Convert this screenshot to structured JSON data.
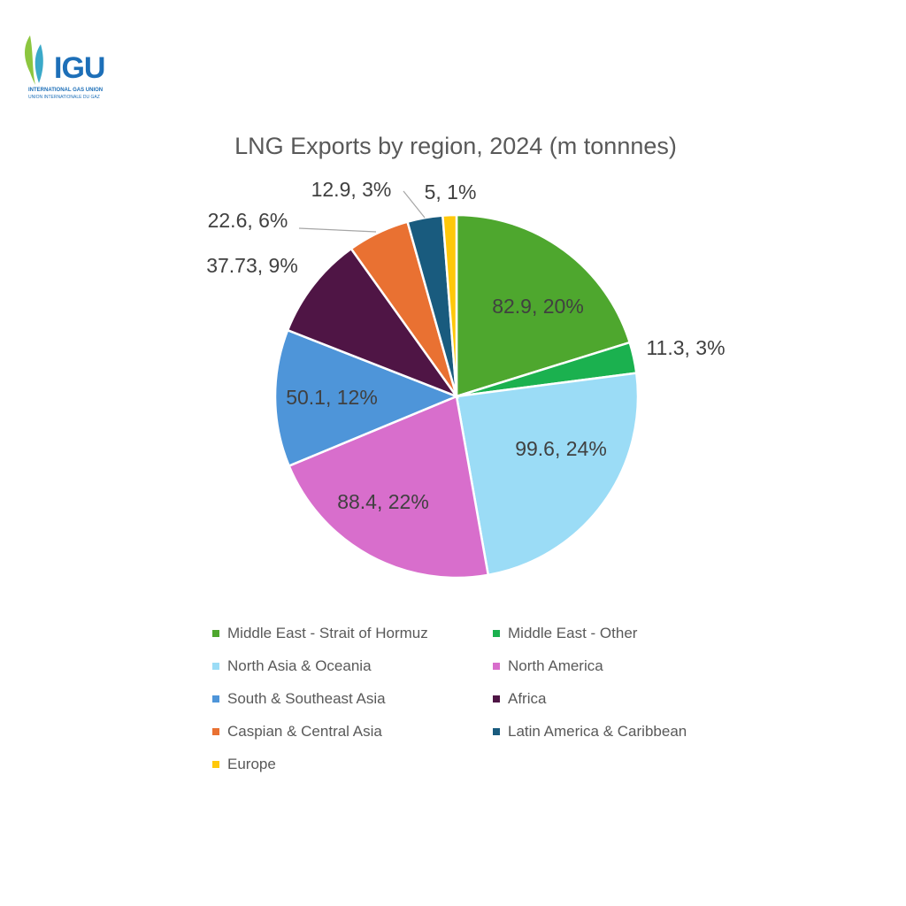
{
  "logo": {
    "name": "IGU",
    "line1": "INTERNATIONAL GAS UNION",
    "line2": "UNION INTERNATIONALE DU GAZ"
  },
  "chart_data": {
    "type": "pie",
    "title": "LNG Exports by region, 2024 (m tonnnes)",
    "start_angle": "top, clockwise",
    "legend_position": "bottom",
    "categories": [
      "Middle East - Strait of Hormuz",
      "Middle East - Other",
      "North Asia & Oceania",
      "North America",
      "South & Southeast Asia",
      "Africa",
      "Caspian & Central Asia",
      "Latin America & Caribbean",
      "Europe"
    ],
    "values": [
      82.9,
      11.3,
      99.6,
      88.4,
      50.1,
      37.73,
      22.6,
      12.9,
      5
    ],
    "data_labels": [
      "82.9, 20%",
      "11.3, 3%",
      "99.6, 24%",
      "88.4, 22%",
      "50.1, 12%",
      "37.73, 9%",
      "22.6, 6%",
      "12.9, 3%",
      "5, 1%"
    ],
    "colors": [
      "#4ea72e",
      "#1bb14f",
      "#9bdcf6",
      "#d86ecc",
      "#4e95d9",
      "#4f1545",
      "#e97132",
      "#195b7e",
      "#ffc80a"
    ]
  }
}
